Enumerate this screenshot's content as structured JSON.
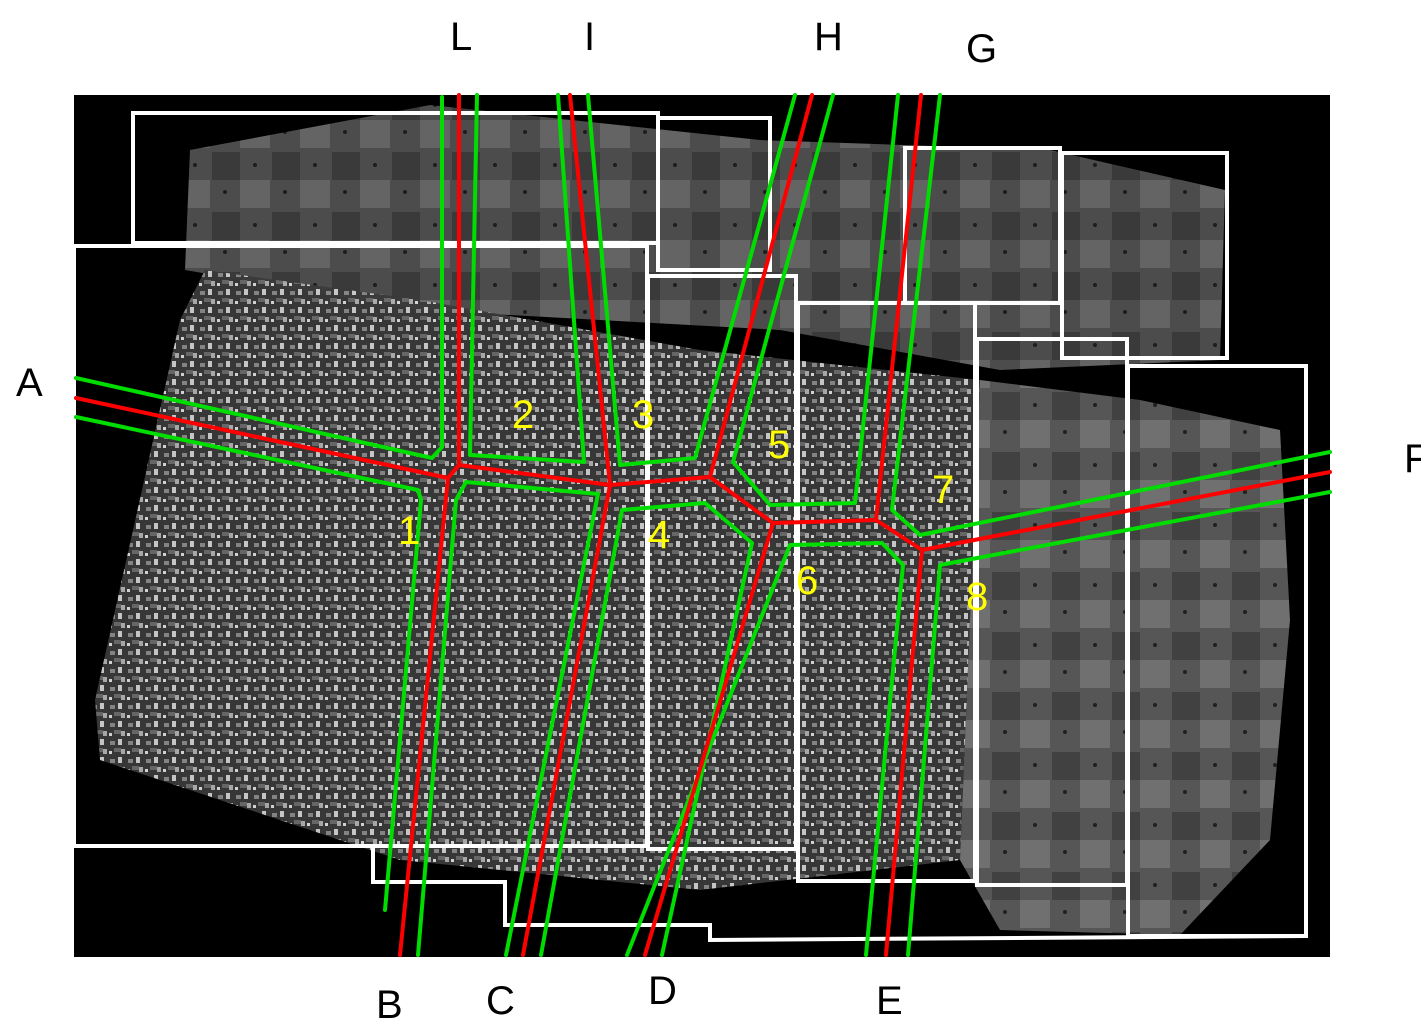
{
  "colors": {
    "axis": "#ff0000",
    "boundary": "#00dd00",
    "frame": "#ffffff",
    "zone_label": "#ffff00",
    "background": "#000000",
    "outer_label": "#000000"
  },
  "road_labels": {
    "A": "A",
    "B": "B",
    "C": "C",
    "D": "D",
    "E": "E",
    "F": "F",
    "G": "G",
    "H": "H",
    "I": "I",
    "L": "L"
  },
  "zone_labels": {
    "z1": "1",
    "z2": "2",
    "z3": "3",
    "z4": "4",
    "z5": "5",
    "z6": "6",
    "z7": "7",
    "z8": "8"
  }
}
